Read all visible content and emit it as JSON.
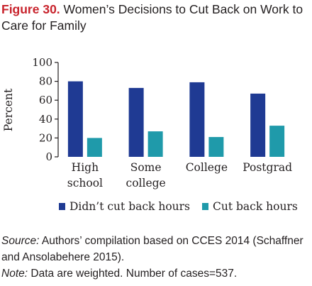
{
  "header": {
    "figure_label": "Figure 30.",
    "title": "Women’s Decisions to Cut Back on Work to Care for Family"
  },
  "colors": {
    "figure_label": "#c8232c",
    "series_1": "#1f3a93",
    "series_2": "#1f9aaa",
    "axis": "#231f20"
  },
  "chart_data": {
    "type": "bar",
    "ylabel": "Percent",
    "ylim": [
      0,
      100
    ],
    "yticks": [
      0,
      20,
      40,
      60,
      80,
      100
    ],
    "grid": false,
    "legend_position": "bottom",
    "categories": [
      [
        "High",
        "school"
      ],
      [
        "Some",
        "college"
      ],
      [
        "College"
      ],
      [
        "Postgrad"
      ]
    ],
    "series": [
      {
        "name": "Didn’t cut back hours",
        "color": "#1f3a93",
        "values": [
          80,
          73,
          79,
          67
        ]
      },
      {
        "name": "Cut back hours",
        "color": "#1f9aaa",
        "values": [
          20,
          27,
          21,
          33
        ]
      }
    ]
  },
  "footer": {
    "source_label": "Source:",
    "source_text": "Authors’ compilation based on CCES 2014 (Schaffner and Ansolabehere 2015).",
    "note_label": "Note:",
    "note_text": "Data are weighted. Number of cases=537."
  }
}
